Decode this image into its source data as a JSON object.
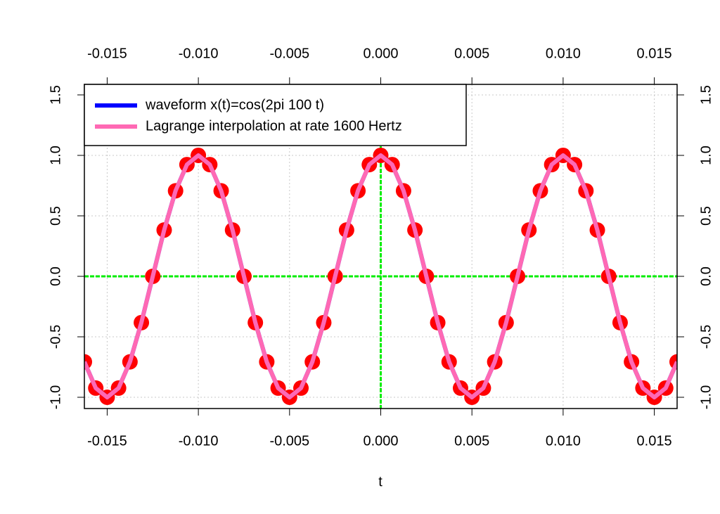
{
  "chart_data": {
    "type": "line",
    "x_label": "t",
    "x": [
      -0.01625,
      -0.015625,
      -0.015,
      -0.014375,
      -0.01375,
      -0.013125,
      -0.0125,
      -0.011875,
      -0.01125,
      -0.010625,
      -0.01,
      -0.009375,
      -0.00875,
      -0.008125,
      -0.0075,
      -0.006875,
      -0.00625,
      -0.005625,
      -0.005,
      -0.004375,
      -0.00375,
      -0.003125,
      -0.0025,
      -0.001875,
      -0.00125,
      -0.000625,
      0,
      0.000625,
      0.00125,
      0.001875,
      0.0025,
      0.003125,
      0.00375,
      0.004375,
      0.005,
      0.005625,
      0.00625,
      0.006875,
      0.0075,
      0.008125,
      0.00875,
      0.009375,
      0.01,
      0.010625,
      0.01125,
      0.011875,
      0.0125,
      0.013125,
      0.01375,
      0.014375,
      0.015,
      0.015625,
      0.01625
    ],
    "series": [
      {
        "name": "waveform x(t)=cos(2pi 100 t)",
        "color": "#0000ff",
        "width": 6,
        "values": [
          -0.7071,
          -0.9239,
          -1,
          -0.9239,
          -0.7071,
          -0.3827,
          0,
          0.3827,
          0.7071,
          0.9239,
          1,
          0.9239,
          0.7071,
          0.3827,
          0,
          -0.3827,
          -0.7071,
          -0.9239,
          -1,
          -0.9239,
          -0.7071,
          -0.3827,
          0,
          0.3827,
          0.7071,
          0.9239,
          1,
          0.9239,
          0.7071,
          0.3827,
          0,
          -0.3827,
          -0.7071,
          -0.9239,
          -1,
          -0.9239,
          -0.7071,
          -0.3827,
          0,
          0.3827,
          0.7071,
          0.9239,
          1,
          0.9239,
          0.7071,
          0.3827,
          0,
          -0.3827,
          -0.7071,
          -0.9239,
          -1,
          -0.9239,
          -0.7071
        ]
      },
      {
        "name": "Lagrange interpolation at rate 1600 Hertz",
        "color": "#ff69b4",
        "width": 6,
        "values": [
          -0.7071,
          -0.9239,
          -1,
          -0.9239,
          -0.7071,
          -0.3827,
          0,
          0.3827,
          0.7071,
          0.9239,
          1,
          0.9239,
          0.7071,
          0.3827,
          0,
          -0.3827,
          -0.7071,
          -0.9239,
          -1,
          -0.9239,
          -0.7071,
          -0.3827,
          0,
          0.3827,
          0.7071,
          0.9239,
          1,
          0.9239,
          0.7071,
          0.3827,
          0,
          -0.3827,
          -0.7071,
          -0.9239,
          -1,
          -0.9239,
          -0.7071,
          -0.3827,
          0,
          0.3827,
          0.7071,
          0.9239,
          1,
          0.9239,
          0.7071,
          0.3827,
          0,
          -0.3827,
          -0.7071,
          -0.9239,
          -1,
          -0.9239,
          -0.7071
        ]
      }
    ],
    "samples": {
      "color": "#ff0000",
      "values": [
        -0.7071,
        -0.9239,
        -1,
        -0.9239,
        -0.7071,
        -0.3827,
        0,
        0.3827,
        0.7071,
        0.9239,
        1,
        0.9239,
        0.7071,
        0.3827,
        0,
        -0.3827,
        -0.7071,
        -0.9239,
        -1,
        -0.9239,
        -0.7071,
        -0.3827,
        0,
        0.3827,
        0.7071,
        0.9239,
        1,
        0.9239,
        0.7071,
        0.3827,
        0,
        -0.3827,
        -0.7071,
        -0.9239,
        -1,
        -0.9239,
        -0.7071,
        -0.3827,
        0,
        0.3827,
        0.7071,
        0.9239,
        1,
        0.9239,
        0.7071,
        0.3827,
        0,
        -0.3827,
        -0.7071,
        -0.9239,
        -1,
        -0.9239,
        -0.7071
      ]
    },
    "xlim": [
      -0.01625,
      0.01625
    ],
    "ylim": [
      -1.093,
      1.587
    ],
    "xticks": [
      {
        "value": -0.015,
        "label": "-0.015"
      },
      {
        "value": -0.01,
        "label": "-0.010"
      },
      {
        "value": -0.005,
        "label": "-0.005"
      },
      {
        "value": 0,
        "label": "0.000"
      },
      {
        "value": 0.005,
        "label": "0.005"
      },
      {
        "value": 0.01,
        "label": "0.010"
      },
      {
        "value": 0.015,
        "label": "0.015"
      }
    ],
    "yticks": [
      {
        "value": -1,
        "label": "-1.0"
      },
      -0.5,
      {
        "value": 0,
        "label": "0.0"
      },
      0.5,
      {
        "value": 1,
        "label": "1.0"
      },
      1.5
    ],
    "grid": true,
    "hlines": [
      0
    ],
    "vlines": [
      0
    ],
    "ref_color": "#00ee00",
    "legend": "topleft"
  }
}
